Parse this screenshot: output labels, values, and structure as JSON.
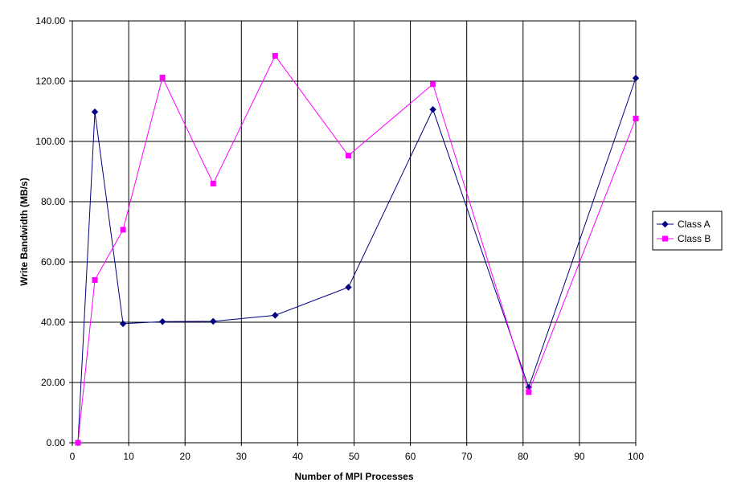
{
  "chart_data": {
    "type": "line",
    "xlabel": "Number of MPI Processes",
    "ylabel": "Write Bandwidth (MB/s)",
    "xlim": [
      0,
      100
    ],
    "ylim": [
      0,
      140
    ],
    "x_ticks": [
      "0",
      "10",
      "20",
      "30",
      "40",
      "50",
      "60",
      "70",
      "80",
      "90",
      "100"
    ],
    "y_ticks": [
      "0.00",
      "20.00",
      "40.00",
      "60.00",
      "80.00",
      "100.00",
      "120.00",
      "140.00"
    ],
    "grid": true,
    "legend_position": "right",
    "x": [
      1,
      4,
      9,
      16,
      25,
      36,
      49,
      64,
      81,
      100
    ],
    "series": [
      {
        "name": "Class A",
        "color": "#000080",
        "marker": "diamond",
        "values": [
          0.0,
          109.8,
          39.5,
          40.2,
          40.3,
          42.3,
          51.6,
          110.6,
          18.4,
          121.0
        ]
      },
      {
        "name": "Class B",
        "color": "#FF00FF",
        "marker": "square",
        "values": [
          0.0,
          54.0,
          70.7,
          121.2,
          86.0,
          128.4,
          95.3,
          119.0,
          16.8,
          107.6
        ]
      }
    ]
  }
}
